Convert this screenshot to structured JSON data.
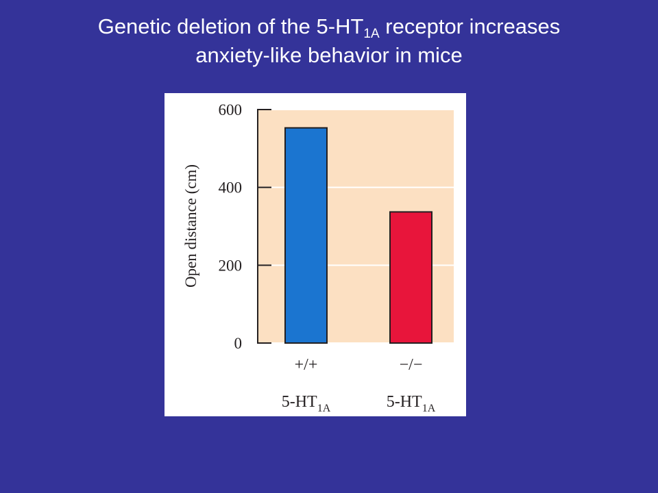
{
  "slide": {
    "title_line1_prefix": "Genetic deletion of the 5-HT",
    "title_line1_sub": "1A",
    "title_line1_suffix": " receptor increases",
    "title_line2": "anxiety-like behavior in mice"
  },
  "colors": {
    "slide_background": "#343399",
    "plot_background": "#fce0c2",
    "wild_type_bar": "#1b75d0",
    "knockout_bar": "#e8153b"
  },
  "chart_data": {
    "type": "bar",
    "title": "",
    "ylabel": "Open distance (cm)",
    "ylim": [
      0,
      600
    ],
    "yticks": [
      0,
      200,
      400,
      600
    ],
    "grid": true,
    "categories": [
      {
        "genotype": "+/+",
        "name": "5-HT",
        "sub": "1A"
      },
      {
        "genotype": "−/−",
        "name": "5-HT",
        "sub": "1A"
      }
    ],
    "values": [
      553,
      337
    ]
  }
}
